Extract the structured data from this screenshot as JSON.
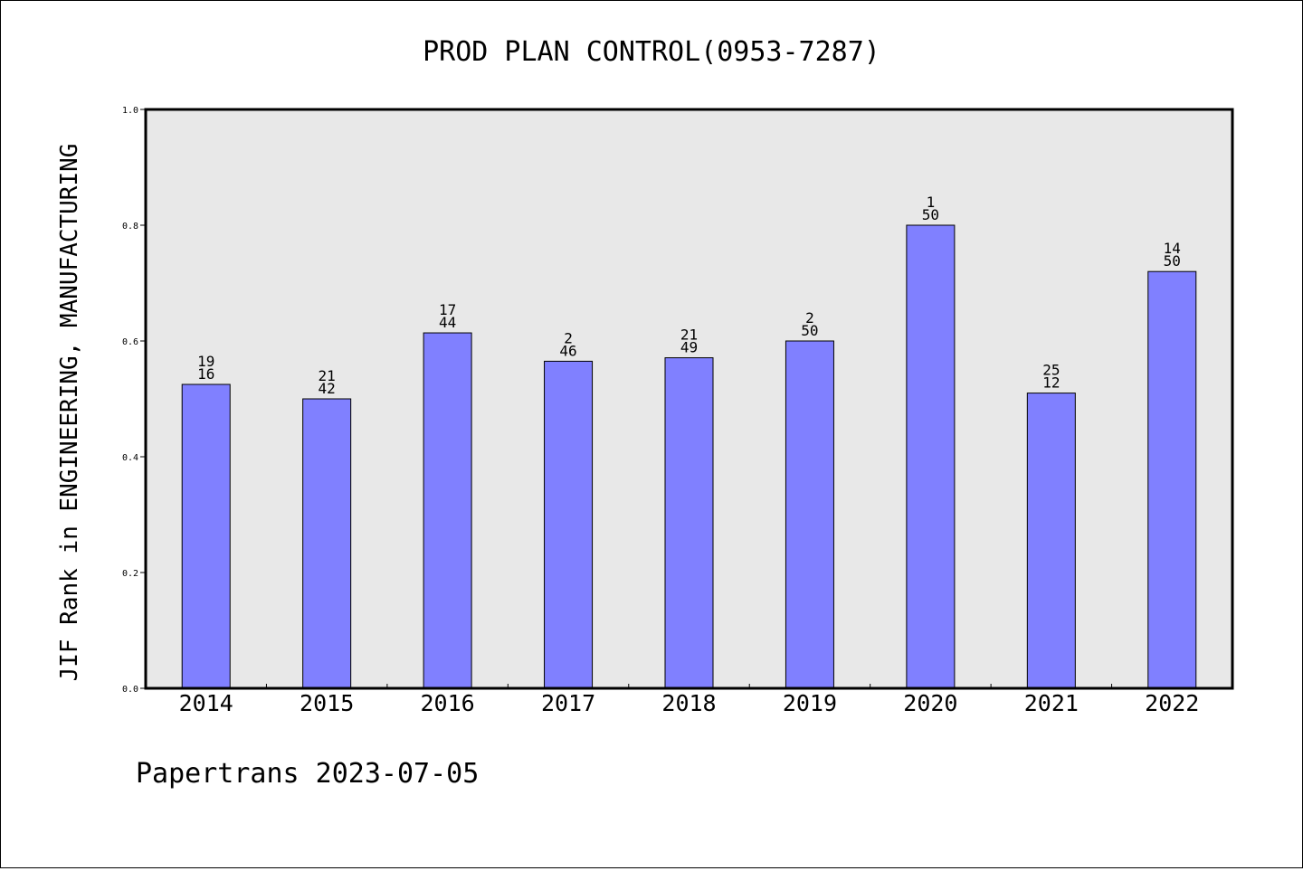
{
  "chart_data": {
    "type": "bar",
    "title": "PROD PLAN CONTROL(0953-7287)",
    "xlabel": "",
    "ylabel": "JIF Rank in ENGINEERING, MANUFACTURING",
    "ylim": [
      0,
      1
    ],
    "yticks": [
      "0.0",
      "0.2",
      "0.4",
      "0.6",
      "0.8",
      "1.0"
    ],
    "grid": false,
    "categories": [
      "2014",
      "2015",
      "2016",
      "2017",
      "2018",
      "2019",
      "2020",
      "2021",
      "2022"
    ],
    "values": [
      0.525,
      0.5,
      0.614,
      0.565,
      0.571,
      0.6,
      0.8,
      0.51,
      0.72
    ],
    "labels": [
      [
        "19",
        "16"
      ],
      [
        "21",
        "42"
      ],
      [
        "17",
        "44"
      ],
      [
        "2",
        "46"
      ],
      [
        "21",
        "49"
      ],
      [
        "2",
        "50"
      ],
      [
        "1",
        "50"
      ],
      [
        "25",
        "12"
      ],
      [
        "14",
        "50"
      ]
    ],
    "colors": {
      "bar": "#8080ff",
      "plot_background": "#e8e8e8",
      "axis": "#000000"
    }
  },
  "footer": {
    "text": "Papertrans 2023-07-05"
  }
}
